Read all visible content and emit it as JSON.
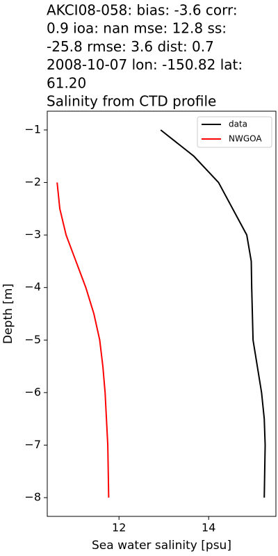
{
  "chart_data": {
    "type": "line",
    "title": [
      "AKCI08-058: bias: -3.6  corr:",
      "0.9  ioa: nan  mse: 12.8  ss:",
      "-25.8  rmse: 3.6  dist: 0.7",
      "2008-10-07 lon: -150.82 lat:",
      "61.20",
      "Salinity from CTD profile"
    ],
    "x_label": "Sea water salinity [psu]",
    "y_label": "Depth [m]",
    "xlim": [
      10.4,
      15.5
    ],
    "ylim": [
      -8.357,
      -0.643
    ],
    "xticks": [
      12,
      14
    ],
    "yticks": [
      {
        "value": -1,
        "label": "−1"
      },
      {
        "value": -2,
        "label": "−2"
      },
      {
        "value": -3,
        "label": "−3"
      },
      {
        "value": -4,
        "label": "−4"
      },
      {
        "value": -5,
        "label": "−5"
      },
      {
        "value": -6,
        "label": "−6"
      },
      {
        "value": -7,
        "label": "−7"
      },
      {
        "value": -8,
        "label": "−8"
      }
    ],
    "legend": "upper right",
    "series": [
      {
        "name": "data",
        "color": "#000000",
        "x": [
          12.93,
          13.67,
          14.22,
          14.85,
          14.95,
          14.96,
          14.99,
          15.18,
          15.24,
          15.26,
          15.24
        ],
        "values": [
          -1,
          -1.5,
          -2,
          -3,
          -3.5,
          -4,
          -5,
          -6,
          -6.5,
          -7,
          -8
        ]
      },
      {
        "name": "NWGOA",
        "color": "#ff0000",
        "x": [
          10.62,
          10.68,
          10.82,
          11.04,
          11.26,
          11.44,
          11.57,
          11.64,
          11.69,
          11.72,
          11.75,
          11.77
        ],
        "values": [
          -2,
          -2.5,
          -3,
          -3.5,
          -4,
          -4.5,
          -5,
          -5.5,
          -6,
          -6.5,
          -7,
          -8
        ]
      }
    ]
  }
}
